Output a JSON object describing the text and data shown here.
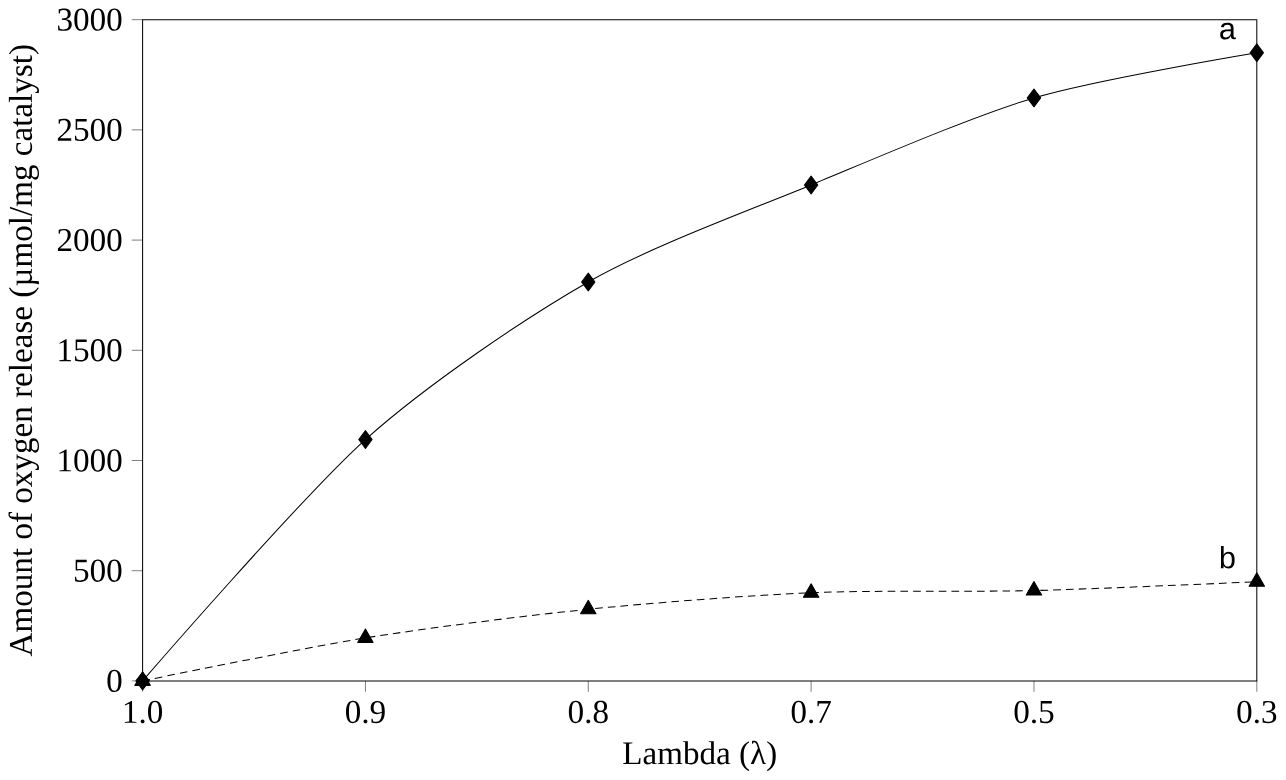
{
  "chart_data": {
    "type": "line",
    "xlabel": "Lambda (λ)",
    "ylabel": "Amount of oxygen release (µmol/mg catalyst)",
    "categories": [
      "1.0",
      "0.9",
      "0.8",
      "0.7",
      "0.5",
      "0.3"
    ],
    "series": [
      {
        "name": "a",
        "color": "#000000",
        "marker": "diamond",
        "line_style": "solid",
        "values": [
          0,
          1095,
          1810,
          2250,
          2645,
          2850
        ]
      },
      {
        "name": "b",
        "color": "#000000",
        "marker": "triangle",
        "line_style": "dashed",
        "values": [
          0,
          195,
          325,
          400,
          410,
          450
        ]
      }
    ],
    "ylim": [
      0,
      3000
    ],
    "yticks": [
      0,
      500,
      1000,
      1500,
      2000,
      2500,
      3000
    ],
    "grid": false,
    "legend": false
  }
}
